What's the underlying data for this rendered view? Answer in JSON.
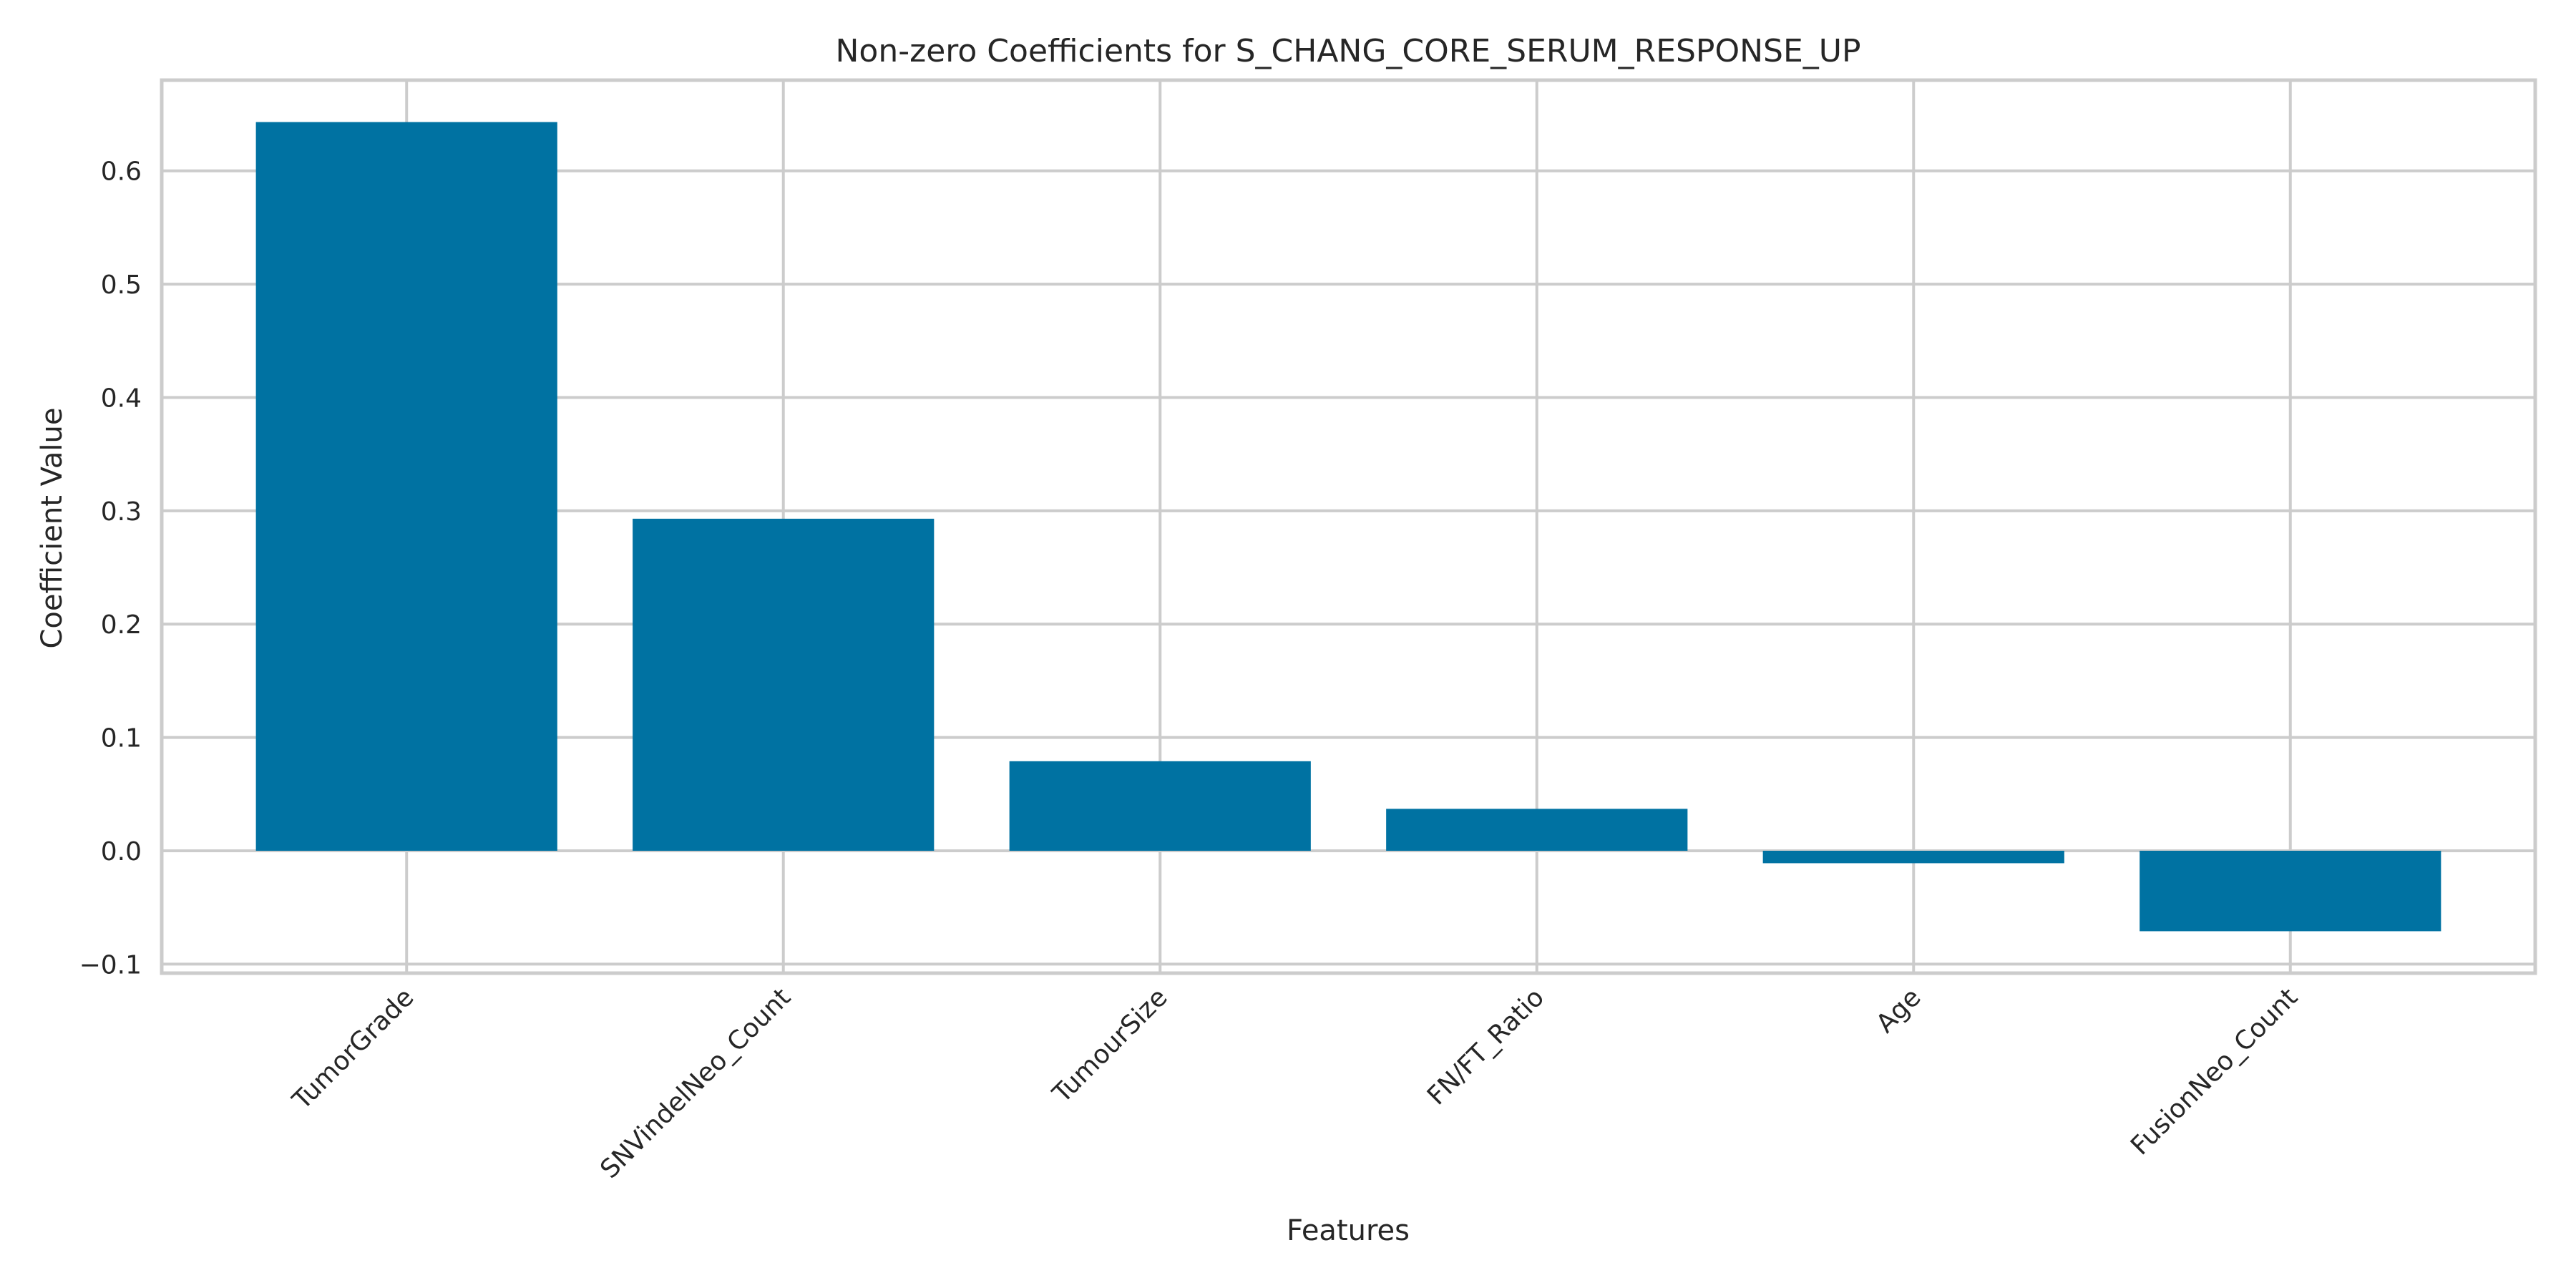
{
  "chart_data": {
    "type": "bar",
    "title": "Non-zero Coefficients for S_CHANG_CORE_SERUM_RESPONSE_UP",
    "xlabel": "Features",
    "ylabel": "Coefficient Value",
    "categories": [
      "TumorGrade",
      "SNVindelNeo_Count",
      "TumourSize",
      "FN/FT_Ratio",
      "Age",
      "FusionNeo_Count"
    ],
    "values": [
      0.643,
      0.293,
      0.079,
      0.037,
      -0.011,
      -0.071
    ],
    "ylim": [
      -0.108,
      0.68
    ],
    "yticks": [
      -0.1,
      0.0,
      0.1,
      0.2,
      0.3,
      0.4,
      0.5,
      0.6
    ],
    "ytick_labels": [
      "−0.1",
      "0.0",
      "0.1",
      "0.2",
      "0.3",
      "0.4",
      "0.5",
      "0.6"
    ],
    "grid": true,
    "legend": "none",
    "bar_color": "#0072a2",
    "grid_color": "#cccccc"
  }
}
